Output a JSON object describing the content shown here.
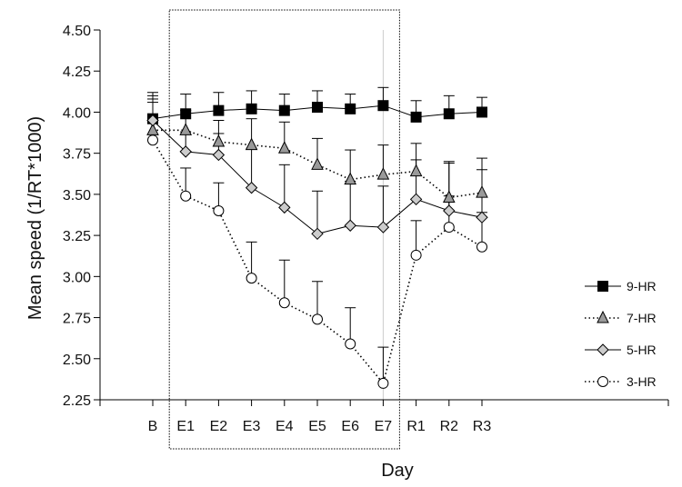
{
  "chart_data": {
    "type": "line",
    "title": "",
    "xlabel": "Day",
    "ylabel": "Mean speed (1/RT*1000)",
    "categories": [
      "B",
      "E1",
      "E2",
      "E3",
      "E4",
      "E5",
      "E6",
      "E7",
      "R1",
      "R2",
      "R3"
    ],
    "ylim": [
      2.25,
      4.5
    ],
    "yticks": [
      "2.25",
      "2.50",
      "2.75",
      "3.00",
      "3.25",
      "3.50",
      "3.75",
      "4.00",
      "4.25",
      "4.50"
    ],
    "grid": false,
    "legend_position": "right",
    "highlight_region": [
      "E1",
      "E7"
    ],
    "series": [
      {
        "name": "9-HR",
        "marker": "square",
        "line_style": "solid",
        "fill": "#000000",
        "values": [
          3.96,
          3.99,
          4.01,
          4.02,
          4.01,
          4.03,
          4.02,
          4.04,
          3.97,
          3.99,
          4.0
        ],
        "error_upper": [
          4.12,
          4.11,
          4.12,
          4.13,
          4.11,
          4.13,
          4.11,
          4.15,
          4.07,
          4.1,
          4.09
        ]
      },
      {
        "name": "7-HR",
        "marker": "triangle",
        "line_style": "dotted",
        "fill": "#9a9a9a",
        "values": [
          3.89,
          3.89,
          3.82,
          3.8,
          3.78,
          3.68,
          3.59,
          3.62,
          3.64,
          3.48,
          3.51
        ],
        "error_upper": [
          4.08,
          4.01,
          3.95,
          3.96,
          3.94,
          3.84,
          3.77,
          3.8,
          3.81,
          3.7,
          3.72
        ]
      },
      {
        "name": "5-HR",
        "marker": "diamond",
        "line_style": "solid",
        "fill": "#cccccc",
        "values": [
          3.95,
          3.76,
          3.74,
          3.54,
          3.42,
          3.26,
          3.31,
          3.3,
          3.47,
          3.4,
          3.36
        ],
        "error_upper": [
          4.1,
          3.88,
          3.87,
          3.78,
          3.68,
          3.52,
          3.58,
          3.55,
          3.71,
          3.69,
          3.65
        ]
      },
      {
        "name": "3-HR",
        "marker": "circle",
        "line_style": "dotted",
        "fill": "#ffffff",
        "values": [
          3.83,
          3.49,
          3.4,
          2.99,
          2.84,
          2.74,
          2.59,
          2.35,
          3.13,
          3.3,
          3.18
        ],
        "error_upper": [
          4.06,
          3.66,
          3.57,
          3.21,
          3.1,
          2.97,
          2.81,
          2.57,
          3.34,
          3.49,
          3.39
        ]
      }
    ]
  }
}
